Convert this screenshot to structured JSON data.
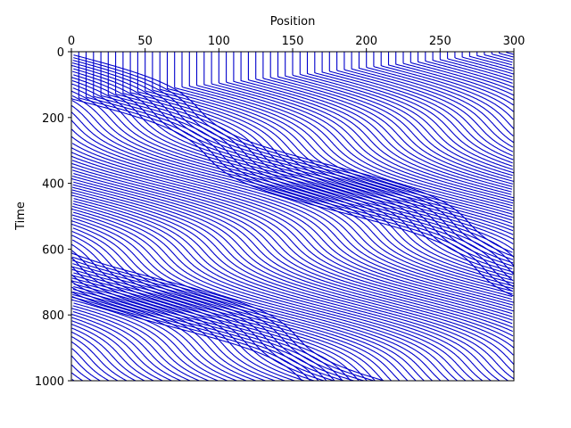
{
  "chart_data": {
    "type": "line",
    "title": "",
    "xlabel": "Position",
    "ylabel": "Time",
    "xlim": [
      0,
      300
    ],
    "ylim": [
      0,
      1000
    ],
    "y_inverted": true,
    "x_axis_position": "top",
    "x_ticks": [
      "0",
      "50",
      "100",
      "150",
      "200",
      "250",
      "300"
    ],
    "y_ticks": [
      "0",
      "200",
      "400",
      "600",
      "800",
      "1000"
    ],
    "grid": false,
    "legend": "none",
    "series_style": {
      "color": "#0000cc",
      "linestyle": "solid"
    },
    "num_trajectories": 60,
    "trajectory_spacing": 5,
    "wrap_period": 300,
    "phases": [
      {
        "t": [
          0,
          140
        ],
        "x_of_first": [
          0,
          0
        ],
        "x_of_last": [
          155,
          298
        ]
      },
      {
        "t": [
          140,
          270
        ],
        "x_of_first": [
          0,
          0
        ],
        "x_of_last": [
          298,
          298
        ]
      },
      {
        "t": [
          270,
          460
        ],
        "x_of_first": [
          0,
          0
        ],
        "x_of_last": [
          298,
          298
        ]
      }
    ],
    "velocity_left_lane": 0,
    "velocity_right_lane_per_1000": 1740,
    "lane_period_time": 330
  }
}
